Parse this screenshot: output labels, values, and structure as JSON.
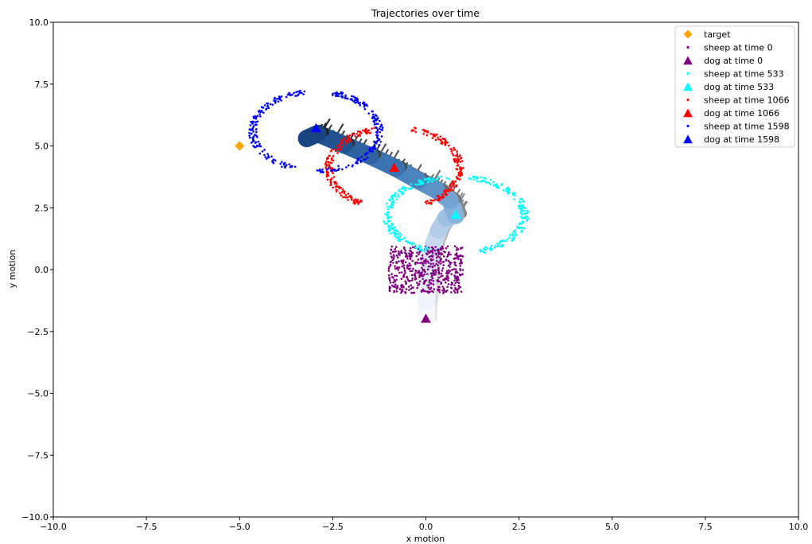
{
  "chart_data": {
    "type": "scatter",
    "title": "Trajectories over time",
    "xlabel": "x motion",
    "ylabel": "y motion",
    "xlim": [
      -10,
      10
    ],
    "ylim": [
      -10,
      10
    ],
    "xticks": [
      "−10.0",
      "−7.5",
      "−5.0",
      "−2.5",
      "0.0",
      "2.5",
      "5.0",
      "7.5",
      "10.0"
    ],
    "yticks": [
      "−10.0",
      "−7.5",
      "−5.0",
      "−2.5",
      "0.0",
      "2.5",
      "5.0",
      "7.5",
      "10.0"
    ],
    "xtick_values": [
      -10,
      -7.5,
      -5,
      -2.5,
      0,
      2.5,
      5,
      7.5,
      10
    ],
    "ytick_values": [
      -10,
      -7.5,
      -5,
      -2.5,
      0,
      2.5,
      5,
      7.5,
      10
    ],
    "grid": false,
    "legend_position": "top-right",
    "target": {
      "name": "target",
      "x": -5.0,
      "y": 5.0,
      "color": "#FFA500",
      "marker": "diamond"
    },
    "dog_path": {
      "x": [
        0.0,
        0.02,
        0.05,
        0.1,
        0.2,
        0.35,
        0.55,
        0.8,
        0.65,
        0.3,
        -0.2,
        -0.8,
        -1.5,
        -2.2,
        -2.9,
        -3.2
      ],
      "y": [
        -2.0,
        -1.3,
        -0.5,
        0.3,
        1.0,
        1.6,
        2.1,
        2.2,
        2.8,
        3.2,
        3.6,
        4.1,
        4.6,
        5.05,
        5.5,
        5.3
      ],
      "colors": [
        "#f7f9fc",
        "#eef3fa",
        "#e3ecf6",
        "#d6e4f2",
        "#c6d9ee",
        "#b3cde8",
        "#9ec0e2",
        "#88b2db",
        "#72a3d3",
        "#5d93c9",
        "#4a83bd",
        "#3a73af",
        "#2d63a0",
        "#215391",
        "#184481",
        "#103a70"
      ]
    },
    "series": [
      {
        "name": "sheep at time 0",
        "color": "#800080",
        "kind": "sheep",
        "shape": "square",
        "center": [
          0.0,
          0.0
        ],
        "half_width": 1.0,
        "count": 520
      },
      {
        "name": "dog at time 0",
        "color": "#800080",
        "kind": "dog",
        "x": 0.0,
        "y": -2.0
      },
      {
        "name": "sheep at time 533",
        "color": "#00FFFF",
        "kind": "sheep",
        "shape": "ring",
        "center": [
          0.8,
          2.2
        ],
        "radius_x": 1.85,
        "radius_y": 1.55,
        "arc_degrees": [
          [
            0,
            80
          ],
          [
            95,
            245
          ],
          [
            290,
            360
          ]
        ],
        "count": 330
      },
      {
        "name": "dog at time 533",
        "color": "#00FFFF",
        "kind": "dog",
        "x": 0.8,
        "y": 2.2
      },
      {
        "name": "sheep at time 1066",
        "color": "#FF0000",
        "kind": "sheep",
        "shape": "ring",
        "center": [
          -0.85,
          4.1
        ],
        "radius_x": 1.75,
        "radius_y": 1.65,
        "arc_degrees": [
          [
            -60,
            75
          ],
          [
            105,
            240
          ]
        ],
        "count": 320
      },
      {
        "name": "dog at time 1066",
        "color": "#FF0000",
        "kind": "dog",
        "x": -0.85,
        "y": 4.1
      },
      {
        "name": "sheep at time 1598",
        "color": "#0000FF",
        "kind": "sheep",
        "shape": "ring",
        "center": [
          -2.95,
          5.6
        ],
        "radius_x": 1.7,
        "radius_y": 1.6,
        "arc_degrees": [
          [
            -90,
            75
          ],
          [
            100,
            250
          ]
        ],
        "count": 320
      },
      {
        "name": "dog at time 1598",
        "color": "#0000FF",
        "kind": "dog",
        "x": -2.95,
        "y": 5.7
      }
    ],
    "legend": [
      {
        "label": "target",
        "color": "#FFA500",
        "marker": "diamond"
      },
      {
        "label": "sheep at time 0",
        "color": "#800080",
        "marker": "dot"
      },
      {
        "label": "dog at time 0",
        "color": "#800080",
        "marker": "triangle"
      },
      {
        "label": "sheep at time 533",
        "color": "#00FFFF",
        "marker": "dot"
      },
      {
        "label": "dog at time 533",
        "color": "#00FFFF",
        "marker": "triangle"
      },
      {
        "label": "sheep at time 1066",
        "color": "#FF0000",
        "marker": "dot"
      },
      {
        "label": "dog at time 1066",
        "color": "#FF0000",
        "marker": "triangle"
      },
      {
        "label": "sheep at time 1598",
        "color": "#0000FF",
        "marker": "dot"
      },
      {
        "label": "dog at time 1598",
        "color": "#0000FF",
        "marker": "triangle"
      }
    ]
  }
}
